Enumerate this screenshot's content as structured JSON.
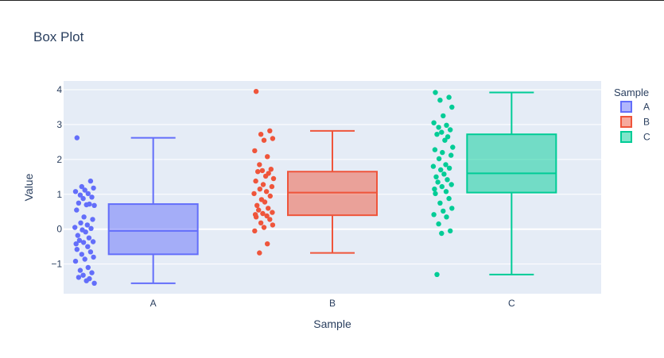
{
  "chart_data": {
    "type": "box",
    "title": "Box Plot",
    "xlabel": "Sample",
    "ylabel": "Value",
    "categories": [
      "A",
      "B",
      "C"
    ],
    "ylim": [
      -1.85,
      4.25
    ],
    "yticks": [
      -1,
      0,
      1,
      2,
      3,
      4
    ],
    "ytick_labels": [
      "−1",
      "0",
      "1",
      "2",
      "3",
      "4"
    ],
    "grid": true,
    "legend": {
      "title": "Sample",
      "placement": "top-right",
      "entries": [
        "A",
        "B",
        "C"
      ]
    },
    "series": [
      {
        "name": "A",
        "color": "#636efa",
        "box": {
          "min": -1.55,
          "q1": -0.72,
          "median": -0.05,
          "q3": 0.72,
          "max": 2.62
        },
        "points": [
          2.62,
          1.38,
          1.22,
          1.18,
          1.12,
          1.08,
          1.02,
          0.98,
          0.92,
          0.88,
          0.75,
          0.72,
          0.7,
          0.68,
          0.55,
          0.35,
          0.28,
          0.18,
          0.12,
          0.05,
          0.02,
          -0.02,
          -0.08,
          -0.18,
          -0.25,
          -0.32,
          -0.36,
          -0.38,
          -0.42,
          -0.5,
          -0.58,
          -0.65,
          -0.72,
          -0.8,
          -0.86,
          -0.92,
          -1.1,
          -1.18,
          -1.25,
          -1.32,
          -1.38,
          -1.42,
          -1.48,
          -1.55
        ]
      },
      {
        "name": "B",
        "color": "#ef553b",
        "box": {
          "min": -0.68,
          "q1": 0.4,
          "median": 1.05,
          "q3": 1.65,
          "max": 2.82
        },
        "points": [
          3.95,
          2.82,
          2.72,
          2.6,
          2.55,
          2.25,
          2.08,
          1.85,
          1.72,
          1.68,
          1.65,
          1.6,
          1.52,
          1.45,
          1.38,
          1.28,
          1.22,
          1.15,
          1.08,
          1.02,
          0.95,
          0.85,
          0.78,
          0.68,
          0.6,
          0.55,
          0.48,
          0.45,
          0.42,
          0.38,
          0.35,
          0.28,
          0.18,
          0.12,
          0.05,
          -0.05,
          -0.42,
          -0.68
        ]
      },
      {
        "name": "C",
        "color": "#00cc96",
        "box": {
          "min": -1.3,
          "q1": 1.05,
          "median": 1.6,
          "q3": 2.72,
          "max": 3.92
        },
        "points": [
          3.92,
          3.78,
          3.7,
          3.5,
          3.25,
          3.05,
          2.98,
          2.92,
          2.85,
          2.78,
          2.72,
          2.65,
          2.55,
          2.35,
          2.28,
          2.2,
          2.12,
          2.02,
          1.85,
          1.8,
          1.75,
          1.7,
          1.58,
          1.5,
          1.42,
          1.35,
          1.28,
          1.22,
          1.15,
          1.08,
          1.02,
          0.88,
          0.75,
          0.6,
          0.52,
          0.42,
          0.35,
          0.15,
          -0.05,
          -0.12,
          -1.3
        ]
      }
    ]
  }
}
